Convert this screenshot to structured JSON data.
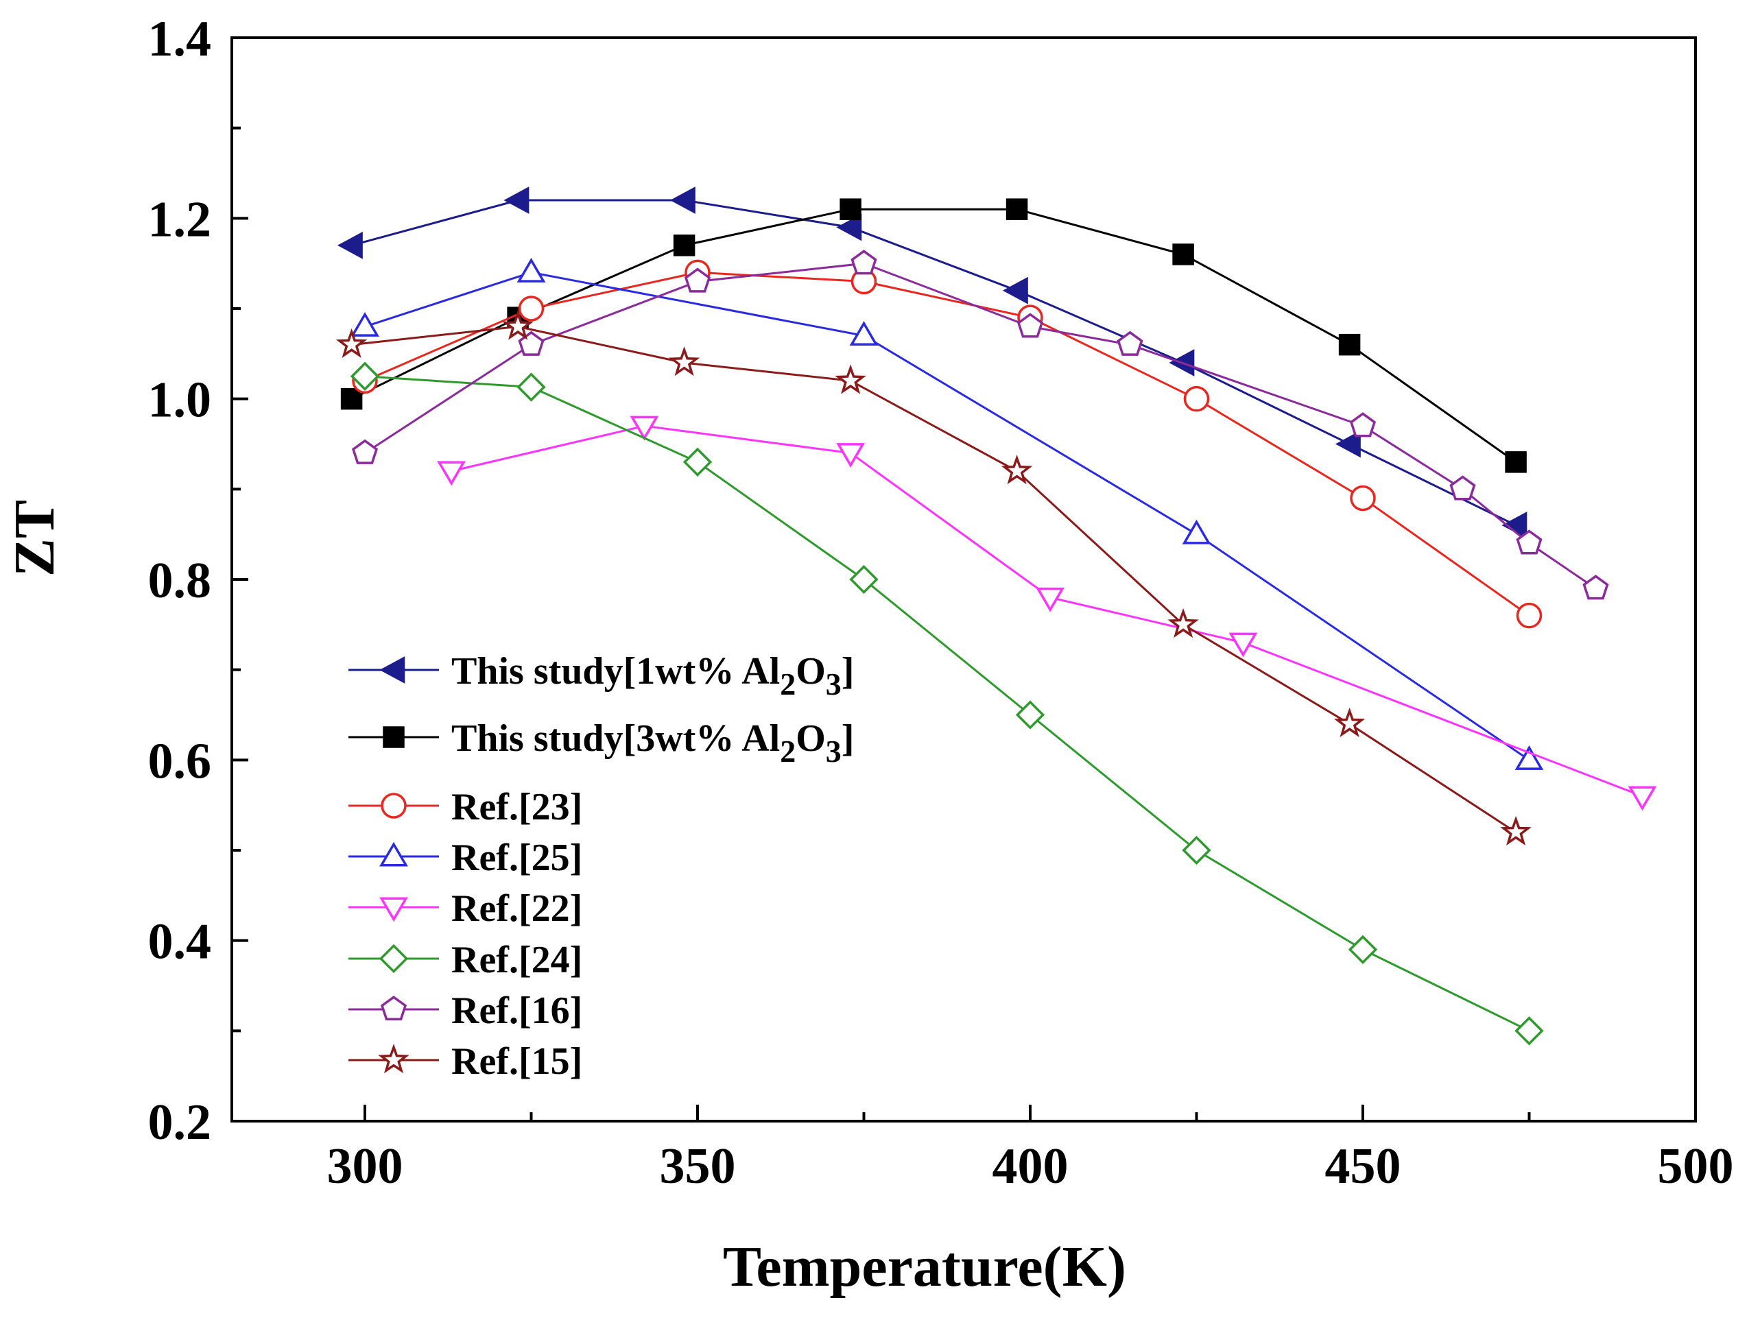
{
  "chart_data": {
    "type": "line",
    "title": "",
    "xlabel": "Temperature(K)",
    "ylabel": "ZT",
    "xlim": [
      280,
      500
    ],
    "ylim": [
      0.2,
      1.4
    ],
    "xticks": [
      300,
      350,
      400,
      450,
      500
    ],
    "xtick_labels": [
      "300",
      "350",
      "400",
      "450",
      "500"
    ],
    "yticks": [
      0.2,
      0.4,
      0.6,
      0.8,
      1.0,
      1.2,
      1.4
    ],
    "ytick_labels": [
      "0.2",
      "0.4",
      "0.6",
      "0.8",
      "1.0",
      "1.2",
      "1.4"
    ],
    "grid": false,
    "legend_position": "lower-left",
    "series": [
      {
        "name": "This study[1wt% Al2O3]",
        "legend_prefix": "This study[1wt% Al",
        "legend_sub1": "2",
        "legend_mid": "O",
        "legend_sub2": "3",
        "legend_suffix": "]",
        "color": "#1c1c8c",
        "marker": "triangle-left",
        "filled": true,
        "x": [
          298,
          323,
          348,
          373,
          398,
          423,
          448,
          473
        ],
        "y": [
          1.17,
          1.22,
          1.22,
          1.19,
          1.12,
          1.04,
          0.95,
          0.86
        ]
      },
      {
        "name": "This study[3wt% Al2O3]",
        "legend_prefix": "This study[3wt% Al",
        "legend_sub1": "2",
        "legend_mid": "O",
        "legend_sub2": "3",
        "legend_suffix": "]",
        "color": "#000000",
        "marker": "square",
        "filled": true,
        "x": [
          298,
          323,
          348,
          373,
          398,
          423,
          448,
          473
        ],
        "y": [
          1.0,
          1.09,
          1.17,
          1.21,
          1.21,
          1.16,
          1.06,
          0.93
        ]
      },
      {
        "name": "Ref.[23]",
        "color": "#e8271f",
        "marker": "circle",
        "filled": false,
        "x": [
          300,
          325,
          350,
          375,
          400,
          425,
          450,
          475
        ],
        "y": [
          1.02,
          1.1,
          1.14,
          1.13,
          1.09,
          1.0,
          0.89,
          0.76
        ]
      },
      {
        "name": "Ref.[25]",
        "color": "#2a2ae0",
        "marker": "triangle-up",
        "filled": false,
        "x": [
          300,
          325,
          375,
          425,
          475
        ],
        "y": [
          1.08,
          1.14,
          1.07,
          0.85,
          0.6
        ]
      },
      {
        "name": "Ref.[22]",
        "color": "#ff33ff",
        "marker": "triangle-down",
        "filled": false,
        "x": [
          313,
          342,
          373,
          403,
          432,
          492
        ],
        "y": [
          0.92,
          0.97,
          0.94,
          0.78,
          0.73,
          0.56
        ]
      },
      {
        "name": "Ref.[24]",
        "color": "#2e9a2e",
        "marker": "diamond",
        "filled": false,
        "x": [
          300,
          325,
          350,
          375,
          400,
          425,
          450,
          475
        ],
        "y": [
          1.025,
          1.013,
          0.93,
          0.8,
          0.65,
          0.5,
          0.39,
          0.3
        ]
      },
      {
        "name": "Ref.[16]",
        "color": "#8b2a9a",
        "marker": "pentagon",
        "filled": false,
        "x": [
          300,
          325,
          350,
          375,
          400,
          415,
          450,
          465,
          475,
          485
        ],
        "y": [
          0.94,
          1.06,
          1.13,
          1.15,
          1.08,
          1.06,
          0.97,
          0.9,
          0.84,
          0.79
        ]
      },
      {
        "name": "Ref.[15]",
        "color": "#8b1a1a",
        "marker": "star",
        "filled": false,
        "x": [
          298,
          323,
          348,
          373,
          398,
          423,
          448,
          473
        ],
        "y": [
          1.06,
          1.08,
          1.04,
          1.02,
          0.92,
          0.75,
          0.64,
          0.52
        ]
      }
    ]
  }
}
